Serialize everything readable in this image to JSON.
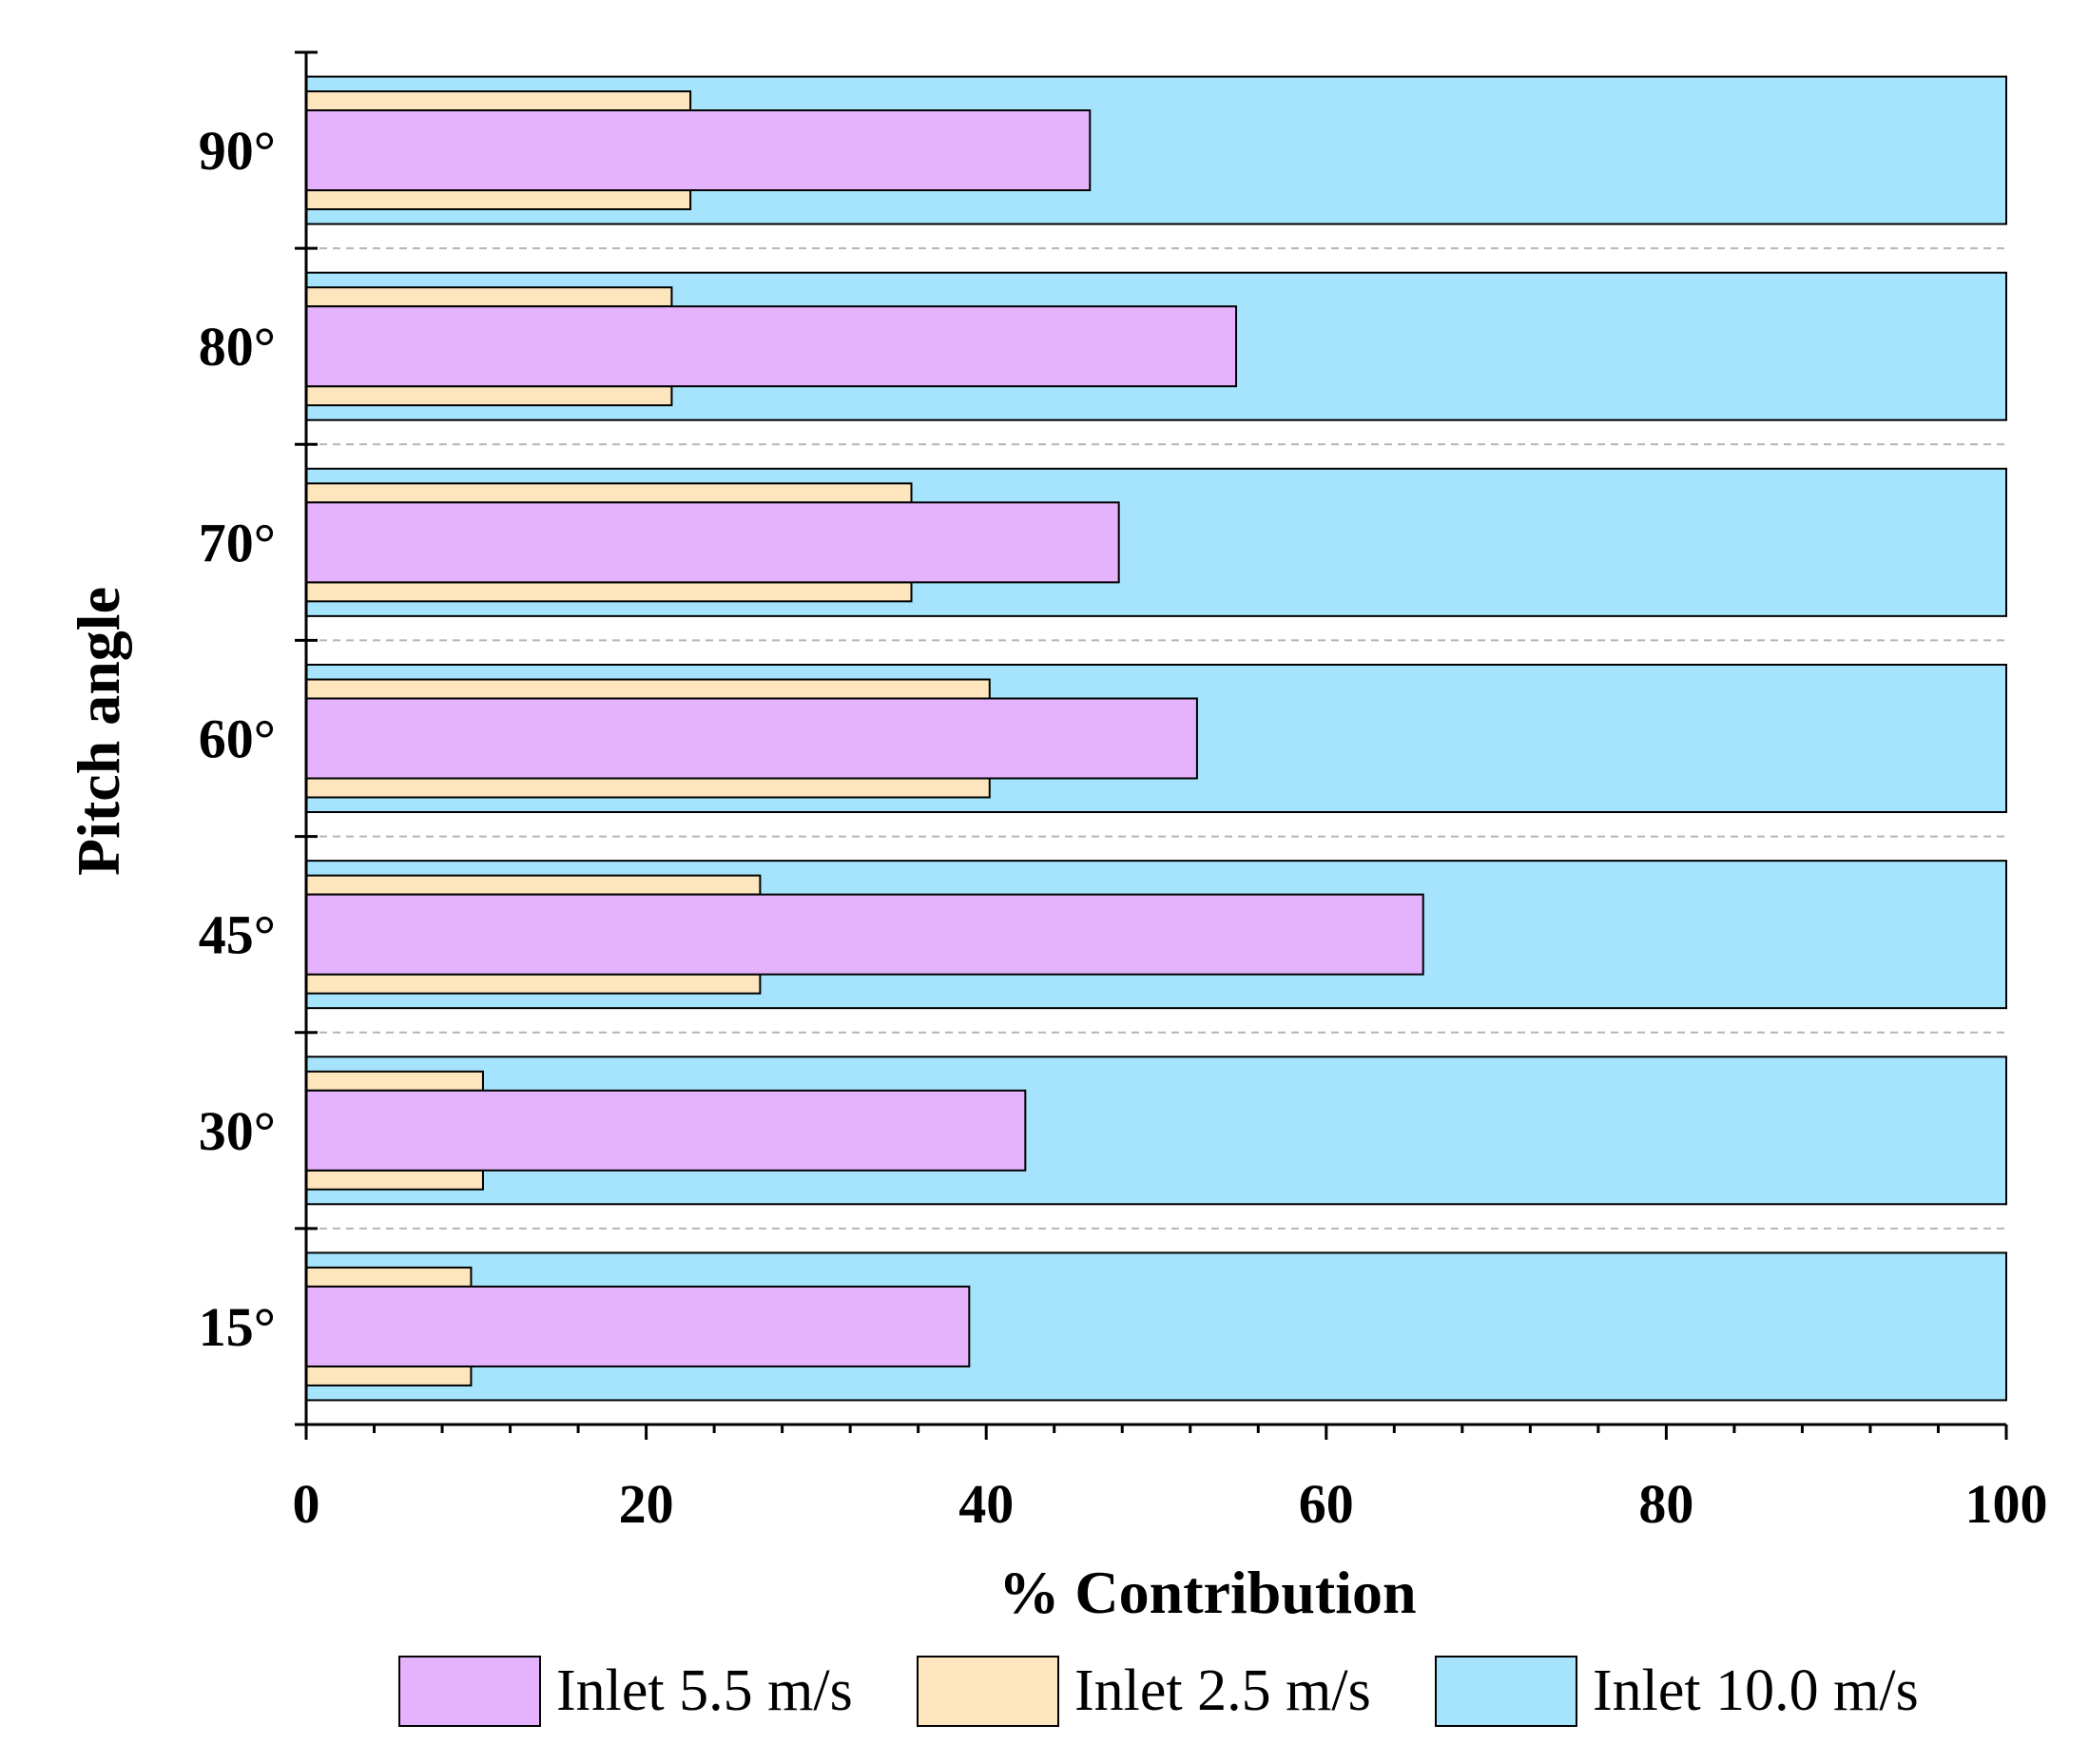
{
  "chart_data": {
    "type": "bar",
    "orientation": "horizontal",
    "title": "",
    "xlabel": "% Contribution",
    "ylabel": "Pitch angle",
    "xlim": [
      0,
      100
    ],
    "xticks": [
      "0",
      "20",
      "40",
      "60",
      "80",
      "100"
    ],
    "categories": [
      "15°",
      "30°",
      "45°",
      "60°",
      "70°",
      "80°",
      "90°"
    ],
    "series": [
      {
        "name": "Inlet 10.0 m/s",
        "color": "#a6e4fd",
        "values": [
          100,
          100,
          100,
          100,
          100,
          100,
          100
        ]
      },
      {
        "name": "Inlet 2.5 m/s",
        "color": "#fde5bd",
        "values": [
          9.7,
          10.4,
          26.7,
          40.2,
          35.6,
          21.5,
          22.6
        ]
      },
      {
        "name": "Inlet 5.5 m/s",
        "color": "#e5b3fd",
        "values": [
          39.0,
          42.3,
          65.7,
          52.4,
          47.8,
          54.7,
          46.1
        ]
      }
    ],
    "legend": {
      "position": "bottom",
      "entries": [
        "Inlet 5.5 m/s",
        "Inlet 2.5 m/s",
        "Inlet 10.0 m/s"
      ]
    },
    "grid": "dashed separators between categories"
  }
}
